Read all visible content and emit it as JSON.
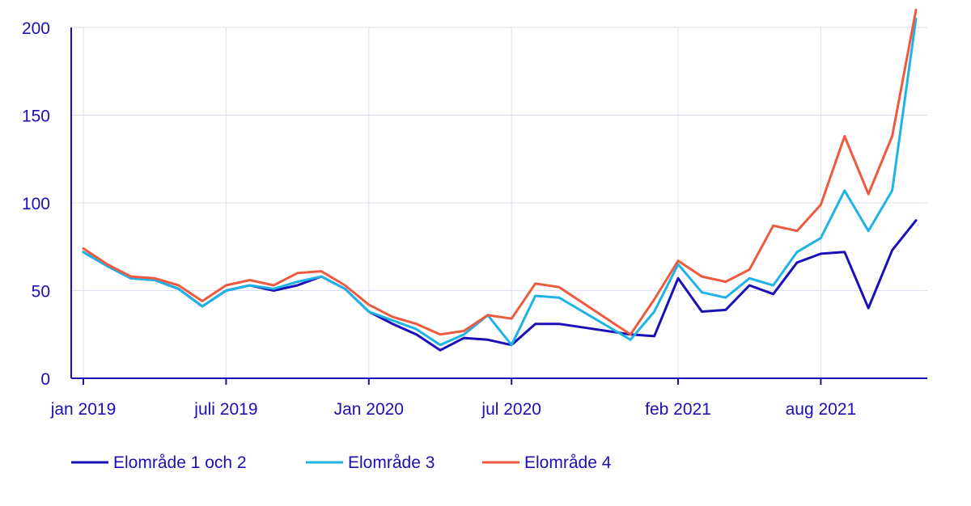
{
  "chart_data": {
    "type": "line",
    "title": "",
    "xlabel": "",
    "ylabel": "",
    "ylim": [
      0,
      200
    ],
    "yticks": [
      0,
      50,
      100,
      150,
      200
    ],
    "x": [
      "2019-01",
      "2019-02",
      "2019-03",
      "2019-04",
      "2019-05",
      "2019-06",
      "2019-07",
      "2019-08",
      "2019-09",
      "2019-10",
      "2019-11",
      "2019-12",
      "2020-01",
      "2020-02",
      "2020-03",
      "2020-04",
      "2020-05",
      "2020-06",
      "2020-07",
      "2020-08",
      "2020-09",
      "2020-10",
      "2020-11",
      "2020-12",
      "2021-01",
      "2021-02",
      "2021-03",
      "2021-04",
      "2021-05",
      "2021-06",
      "2021-07",
      "2021-08",
      "2021-09",
      "2021-10",
      "2021-11",
      "2021-12"
    ],
    "xticks": [
      {
        "x": "2019-01",
        "label": "jan 2019"
      },
      {
        "x": "2019-07",
        "label": "juli 2019"
      },
      {
        "x": "2020-01",
        "label": "Jan 2020"
      },
      {
        "x": "2020-07",
        "label": "jul 2020"
      },
      {
        "x": "2021-02",
        "label": "feb 2021"
      },
      {
        "x": "2021-08",
        "label": "aug 2021"
      }
    ],
    "grid": true,
    "legend_position": "bottom-left",
    "series": [
      {
        "name": "Elområde 1 och 2",
        "color": "#1b0fb8",
        "values": [
          72,
          64,
          57,
          56,
          51,
          41,
          50,
          53,
          50,
          53,
          58,
          51,
          38,
          31,
          25,
          16,
          23,
          22,
          19,
          31,
          31,
          null,
          null,
          25,
          24,
          57,
          38,
          39,
          53,
          48,
          66,
          71,
          72,
          40,
          73,
          90
        ]
      },
      {
        "name": "Elområde 3",
        "color": "#1fb3e5",
        "values": [
          72,
          64,
          57,
          56,
          51,
          41,
          50,
          53,
          51,
          55,
          58,
          51,
          38,
          33,
          28,
          19,
          25,
          36,
          19,
          47,
          46,
          null,
          null,
          22,
          38,
          65,
          49,
          46,
          57,
          53,
          72,
          80,
          107,
          84,
          107,
          205
        ]
      },
      {
        "name": "Elområde 4",
        "color": "#ed5a3f",
        "values": [
          74,
          65,
          58,
          57,
          53,
          44,
          53,
          56,
          53,
          60,
          61,
          53,
          42,
          35,
          31,
          25,
          27,
          36,
          34,
          54,
          52,
          null,
          null,
          25,
          45,
          67,
          58,
          55,
          62,
          87,
          84,
          99,
          138,
          105,
          138,
          210
        ]
      }
    ]
  }
}
